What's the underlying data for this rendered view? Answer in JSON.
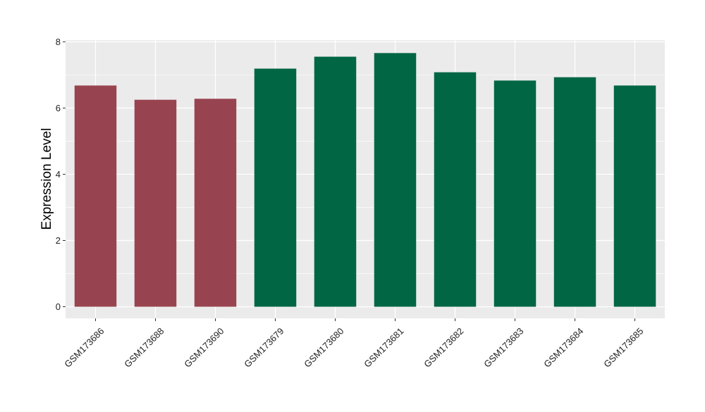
{
  "chart_data": {
    "type": "bar",
    "title": "",
    "xlabel": "",
    "ylabel": "Expression Level",
    "ylim": [
      -0.35,
      8.05
    ],
    "yticks": [
      0,
      2,
      4,
      6,
      8
    ],
    "categories": [
      "GSM173686",
      "GSM173688",
      "GSM173690",
      "GSM173679",
      "GSM173680",
      "GSM173681",
      "GSM173682",
      "GSM173683",
      "GSM173684",
      "GSM173685"
    ],
    "values": [
      6.68,
      6.25,
      6.28,
      7.19,
      7.55,
      7.66,
      7.08,
      6.83,
      6.93,
      6.68
    ],
    "groups": [
      "group1",
      "group1",
      "group1",
      "group2",
      "group2",
      "group2",
      "group2",
      "group2",
      "group2",
      "group2"
    ],
    "group_colors": {
      "group1": "#984450",
      "group2": "#006644"
    },
    "grid": true,
    "legend": "none",
    "panel_background": "#ebebeb",
    "gridline_color": "#ffffff"
  }
}
